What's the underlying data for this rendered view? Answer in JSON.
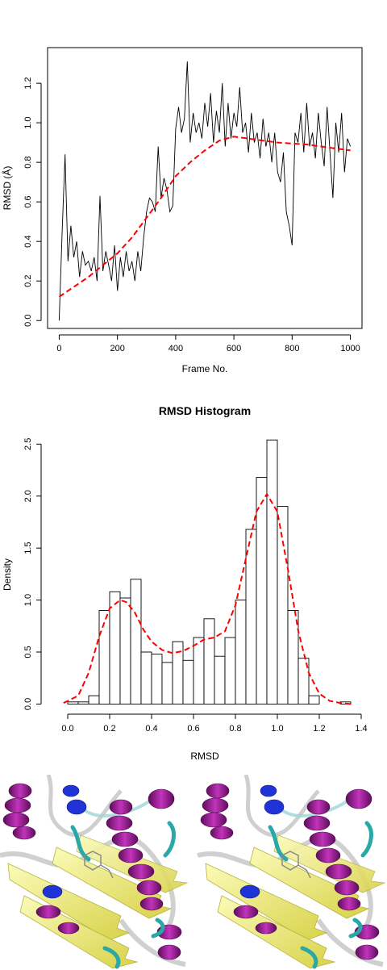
{
  "chart_data": [
    {
      "type": "line",
      "title": "",
      "xlabel": "Frame No.",
      "ylabel": "RMSD (Å)",
      "xlim": [
        0,
        1000
      ],
      "ylim": [
        0,
        1.3
      ],
      "x_ticks": [
        0,
        200,
        400,
        600,
        800,
        1000
      ],
      "y_ticks": [
        0.0,
        0.2,
        0.4,
        0.6,
        0.8,
        1.0,
        1.2
      ],
      "x_tick_labels": [
        "0",
        "200",
        "400",
        "600",
        "800",
        "1000"
      ],
      "y_tick_labels": [
        "0.0",
        "0.2",
        "0.4",
        "0.6",
        "0.8",
        "1.0",
        "1.2"
      ],
      "series": [
        {
          "style": "solid",
          "color": "#000000",
          "x": [
            0,
            10,
            20,
            30,
            40,
            50,
            60,
            70,
            80,
            90,
            100,
            110,
            120,
            130,
            140,
            150,
            160,
            170,
            180,
            190,
            200,
            210,
            220,
            230,
            240,
            250,
            260,
            270,
            280,
            290,
            300,
            310,
            320,
            330,
            340,
            350,
            360,
            370,
            380,
            390,
            400,
            410,
            420,
            430,
            440,
            450,
            460,
            470,
            480,
            490,
            500,
            510,
            520,
            530,
            540,
            550,
            560,
            570,
            580,
            590,
            600,
            610,
            620,
            630,
            640,
            650,
            660,
            670,
            680,
            690,
            700,
            710,
            720,
            730,
            740,
            750,
            760,
            770,
            780,
            790,
            800,
            810,
            820,
            830,
            840,
            850,
            860,
            870,
            880,
            890,
            900,
            910,
            920,
            930,
            940,
            950,
            960,
            970,
            980,
            990,
            1000
          ],
          "y": [
            0.0,
            0.45,
            0.84,
            0.3,
            0.48,
            0.32,
            0.4,
            0.22,
            0.35,
            0.28,
            0.3,
            0.25,
            0.32,
            0.2,
            0.63,
            0.25,
            0.35,
            0.28,
            0.2,
            0.38,
            0.15,
            0.32,
            0.22,
            0.35,
            0.25,
            0.3,
            0.2,
            0.35,
            0.25,
            0.42,
            0.55,
            0.62,
            0.6,
            0.55,
            0.88,
            0.62,
            0.72,
            0.66,
            0.55,
            0.58,
            0.97,
            1.08,
            0.95,
            1.02,
            1.31,
            0.9,
            1.05,
            0.95,
            1.0,
            0.92,
            1.1,
            0.98,
            1.15,
            0.9,
            1.06,
            0.95,
            1.2,
            0.88,
            1.1,
            0.92,
            1.05,
            0.98,
            1.18,
            0.95,
            1.0,
            0.85,
            1.05,
            0.9,
            0.95,
            0.82,
            1.02,
            0.88,
            0.95,
            0.8,
            0.95,
            0.75,
            0.7,
            0.85,
            0.55,
            0.48,
            0.38,
            0.95,
            0.9,
            1.05,
            0.85,
            1.1,
            0.88,
            0.95,
            0.82,
            1.05,
            0.9,
            0.78,
            1.08,
            0.85,
            0.62,
            1.0,
            0.85,
            1.05,
            0.75,
            0.92,
            0.88
          ]
        },
        {
          "style": "dashed",
          "color": "#ff0000",
          "x": [
            0,
            50,
            100,
            150,
            200,
            250,
            300,
            350,
            400,
            450,
            500,
            550,
            600,
            650,
            700,
            750,
            800,
            850,
            900,
            950,
            1000
          ],
          "y": [
            0.12,
            0.17,
            0.22,
            0.28,
            0.34,
            0.42,
            0.52,
            0.62,
            0.73,
            0.8,
            0.86,
            0.91,
            0.93,
            0.92,
            0.91,
            0.9,
            0.895,
            0.89,
            0.88,
            0.87,
            0.86
          ]
        }
      ]
    },
    {
      "type": "bar",
      "title": "RMSD Histogram",
      "xlabel": "RMSD",
      "ylabel": "Density",
      "xlim": [
        0,
        1.4
      ],
      "ylim": [
        0,
        2.5
      ],
      "x_ticks": [
        0.0,
        0.2,
        0.4,
        0.6,
        0.8,
        1.0,
        1.2,
        1.4
      ],
      "y_ticks": [
        0.0,
        0.5,
        1.0,
        1.5,
        2.0,
        2.5
      ],
      "x_tick_labels": [
        "0.0",
        "0.2",
        "0.4",
        "0.6",
        "0.8",
        "1.0",
        "1.2",
        "1.4"
      ],
      "y_tick_labels": [
        "0.0",
        "0.5",
        "1.0",
        "1.5",
        "2.0",
        "2.5"
      ],
      "bin_width": 0.05,
      "bin_starts": [
        0.0,
        0.05,
        0.1,
        0.15,
        0.2,
        0.25,
        0.3,
        0.35,
        0.4,
        0.45,
        0.5,
        0.55,
        0.6,
        0.65,
        0.7,
        0.75,
        0.8,
        0.85,
        0.9,
        0.95,
        1.0,
        1.05,
        1.1,
        1.15,
        1.2,
        1.25,
        1.3
      ],
      "values": [
        0.02,
        0.02,
        0.08,
        0.9,
        1.08,
        1.02,
        1.2,
        0.5,
        0.48,
        0.4,
        0.6,
        0.42,
        0.64,
        0.82,
        0.46,
        0.64,
        1.0,
        1.68,
        2.18,
        2.54,
        1.9,
        0.9,
        0.44,
        0.08,
        0.0,
        0.0,
        0.02
      ],
      "density_curve": {
        "style": "dashed",
        "color": "#ff0000",
        "x": [
          -0.02,
          0.05,
          0.1,
          0.15,
          0.2,
          0.25,
          0.28,
          0.32,
          0.36,
          0.4,
          0.45,
          0.5,
          0.55,
          0.6,
          0.65,
          0.7,
          0.75,
          0.8,
          0.85,
          0.9,
          0.95,
          1.0,
          1.05,
          1.1,
          1.15,
          1.2,
          1.25,
          1.3,
          1.35
        ],
        "y": [
          0.01,
          0.08,
          0.3,
          0.65,
          0.92,
          1.0,
          0.98,
          0.88,
          0.72,
          0.6,
          0.52,
          0.49,
          0.51,
          0.56,
          0.62,
          0.64,
          0.7,
          0.95,
          1.4,
          1.85,
          2.02,
          1.85,
          1.3,
          0.7,
          0.3,
          0.1,
          0.03,
          0.01,
          0.0
        ]
      }
    }
  ],
  "colors": {
    "data_line": "#000000",
    "fit_line": "#ff0000",
    "helix": "#a0189a",
    "sheet": "#f0ee7a",
    "coil": "#d8d8d8",
    "turn": "#2aa7a7",
    "helix310": "#1f33d6"
  },
  "structure_panels": [
    "left-protein-render",
    "right-protein-render"
  ]
}
